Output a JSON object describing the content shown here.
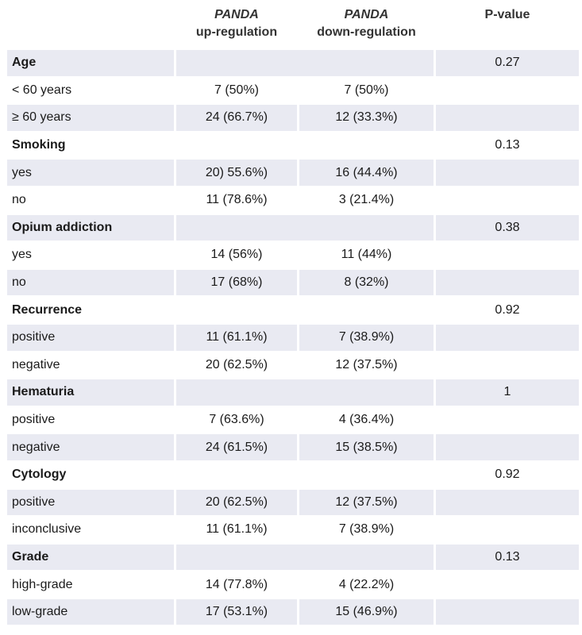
{
  "table": {
    "headers": {
      "col1_italic": "PANDA",
      "col1_sub": "up-regulation",
      "col2_italic": "PANDA",
      "col2_sub": "down-regulation",
      "col3": "P-value"
    },
    "rows": [
      {
        "kind": "group",
        "label": "Age",
        "up": "",
        "down": "",
        "p": "0.27"
      },
      {
        "kind": "white",
        "label": "< 60 years",
        "up": "7 (50%)",
        "down": "7 (50%)",
        "p": ""
      },
      {
        "kind": "shaded",
        "label": "≥ 60 years",
        "up": "24 (66.7%)",
        "down": "12 (33.3%)",
        "p": ""
      },
      {
        "kind": "groupw",
        "label": "Smoking",
        "up": "",
        "down": "",
        "p": "0.13"
      },
      {
        "kind": "shaded",
        "label": "yes",
        "up": "20) 55.6%)",
        "down": "16 (44.4%)",
        "p": ""
      },
      {
        "kind": "white",
        "label": "no",
        "up": "11 (78.6%)",
        "down": "3 (21.4%)",
        "p": ""
      },
      {
        "kind": "group",
        "label": "Opium addiction",
        "up": "",
        "down": "",
        "p": "0.38"
      },
      {
        "kind": "white",
        "label": "yes",
        "up": "14 (56%)",
        "down": "11 (44%)",
        "p": ""
      },
      {
        "kind": "shaded",
        "label": "no",
        "up": "17 (68%)",
        "down": "8 (32%)",
        "p": ""
      },
      {
        "kind": "groupw",
        "label": "Recurrence",
        "up": "",
        "down": "",
        "p": "0.92"
      },
      {
        "kind": "shaded",
        "label": "positive",
        "up": "11 (61.1%)",
        "down": "7 (38.9%)",
        "p": ""
      },
      {
        "kind": "white",
        "label": "negative",
        "up": "20 (62.5%)",
        "down": "12 (37.5%)",
        "p": ""
      },
      {
        "kind": "group",
        "label": "Hematuria",
        "up": "",
        "down": "",
        "p": "1"
      },
      {
        "kind": "white",
        "label": "positive",
        "up": "7 (63.6%)",
        "down": "4 (36.4%)",
        "p": ""
      },
      {
        "kind": "shaded",
        "label": "negative",
        "up": "24 (61.5%)",
        "down": "15 (38.5%)",
        "p": ""
      },
      {
        "kind": "groupw",
        "label": "Cytology",
        "up": "",
        "down": "",
        "p": "0.92"
      },
      {
        "kind": "shaded",
        "label": "positive",
        "up": "20 (62.5%)",
        "down": "12 (37.5%)",
        "p": ""
      },
      {
        "kind": "white",
        "label": "inconclusive",
        "up": "11 (61.1%)",
        "down": "7 (38.9%)",
        "p": ""
      },
      {
        "kind": "group",
        "label": "Grade",
        "up": "",
        "down": "",
        "p": "0.13"
      },
      {
        "kind": "white",
        "label": "high-grade",
        "up": "14 (77.8%)",
        "down": "4 (22.2%)",
        "p": ""
      },
      {
        "kind": "shaded",
        "label": "low-grade",
        "up": "17 (53.1%)",
        "down": "15 (46.9%)",
        "p": ""
      }
    ]
  },
  "colors": {
    "shade": "#e9eaf2",
    "text": "#1a1a1a"
  }
}
